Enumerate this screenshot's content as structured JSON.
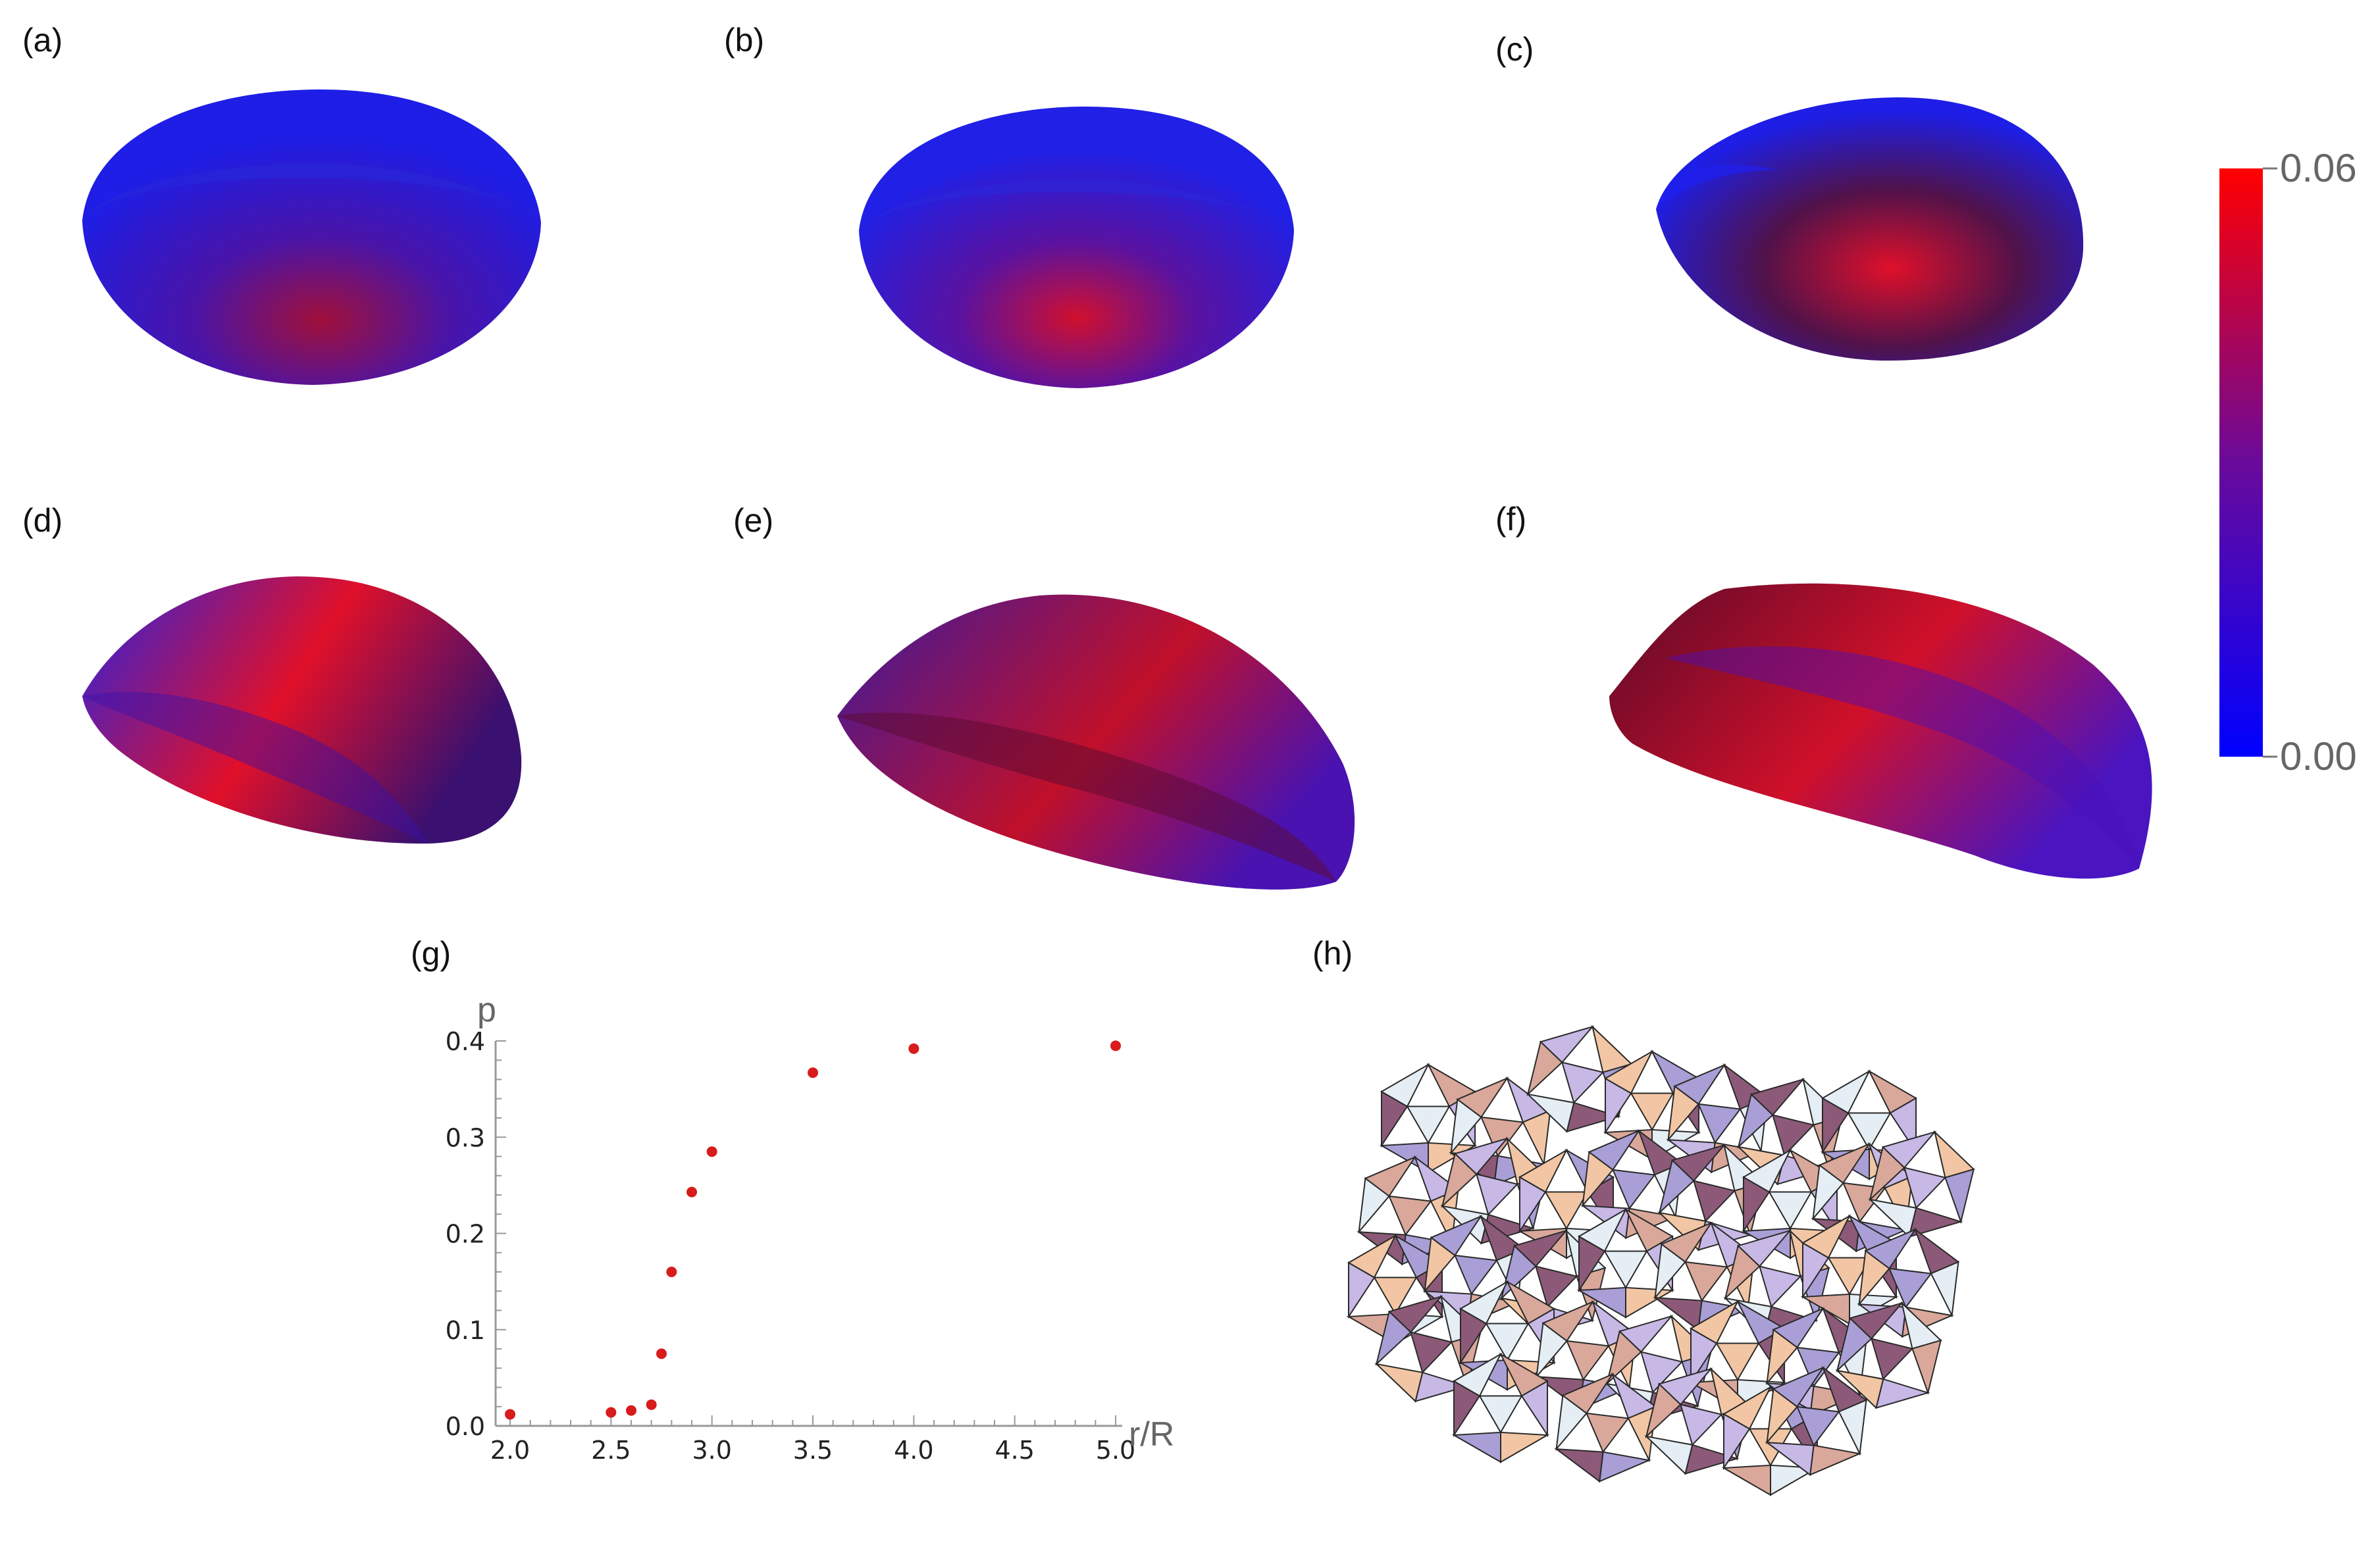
{
  "panel_labels": {
    "a": "(a)",
    "b": "(b)",
    "c": "(c)",
    "d": "(d)",
    "e": "(e)",
    "f": "(f)",
    "g": "(g)",
    "h": "(h)"
  },
  "colorbar": {
    "min_label": "0.00",
    "max_label": "0.06",
    "min": 0.0,
    "max": 0.06,
    "color_low": "#0000ff",
    "color_mid": "#6a0a9a",
    "color_high": "#ff0000"
  },
  "colors": {
    "shell_blue": "#1e1ee6",
    "shell_dark": "#3a0a40",
    "shell_red": "#e0102a",
    "point_red": "#d81b1b",
    "icosa_peach": "#f2c6a4",
    "icosa_lilac": "#a99fd6",
    "icosa_plum": "#8c5a78",
    "icosa_ice": "#e4eef4"
  },
  "chart_data": {
    "type": "scatter",
    "xlabel": "r/R",
    "ylabel": "p",
    "xlim": [
      2.0,
      5.0
    ],
    "ylim": [
      0.0,
      0.4
    ],
    "x_ticks": [
      "2.0",
      "2.5",
      "3.0",
      "3.5",
      "4.0",
      "4.5",
      "5.0"
    ],
    "y_ticks": [
      "0.0",
      "0.1",
      "0.2",
      "0.3",
      "0.4"
    ],
    "x": [
      2.0,
      2.5,
      2.6,
      2.7,
      2.75,
      2.8,
      2.9,
      3.0,
      3.5,
      4.0,
      5.0
    ],
    "y": [
      0.012,
      0.014,
      0.016,
      0.022,
      0.075,
      0.16,
      0.243,
      0.285,
      0.367,
      0.392,
      0.395
    ],
    "point_color": "#d81b1b",
    "grid": false
  }
}
